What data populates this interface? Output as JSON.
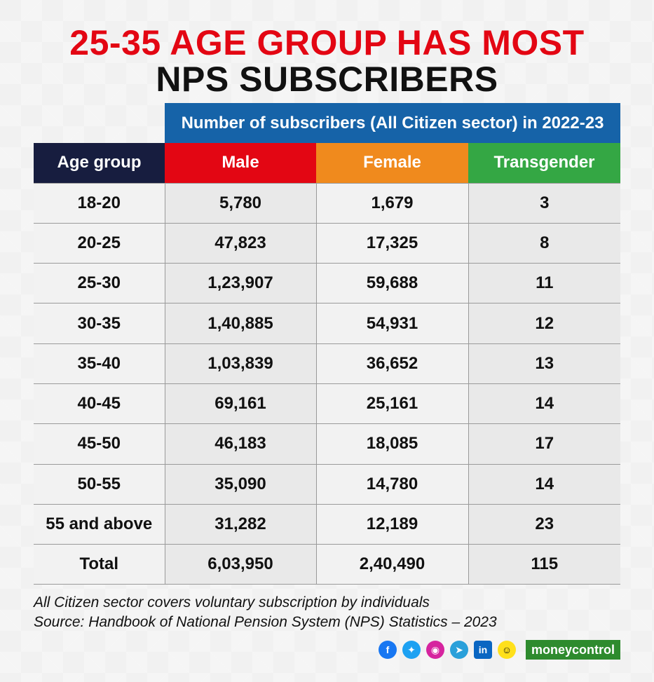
{
  "title": {
    "line1": "25-35 AGE GROUP HAS MOST",
    "line2": "NPS SUBSCRIBERS"
  },
  "chart_data": {
    "type": "table",
    "title": "25-35 AGE GROUP HAS MOST NPS SUBSCRIBERS",
    "super_header": "Number of subscribers (All Citizen sector) in 2022-23",
    "columns": [
      "Age group",
      "Male",
      "Female",
      "Transgender"
    ],
    "rows": [
      [
        "18-20",
        "5,780",
        "1,679",
        "3"
      ],
      [
        "20-25",
        "47,823",
        "17,325",
        "8"
      ],
      [
        "25-30",
        "1,23,907",
        "59,688",
        "11"
      ],
      [
        "30-35",
        "1,40,885",
        "54,931",
        "12"
      ],
      [
        "35-40",
        "1,03,839",
        "36,652",
        "13"
      ],
      [
        "40-45",
        "69,161",
        "25,161",
        "14"
      ],
      [
        "45-50",
        "46,183",
        "18,085",
        "17"
      ],
      [
        "50-55",
        "35,090",
        "14,780",
        "14"
      ],
      [
        "55 and above",
        "31,282",
        "12,189",
        "23"
      ],
      [
        "Total",
        "6,03,950",
        "2,40,490",
        "115"
      ]
    ],
    "column_colors": {
      "Age group": "#171d3f",
      "Male": "#e30613",
      "Female": "#f08a1d",
      "Transgender": "#34a744"
    },
    "super_header_color": "#1663a8"
  },
  "notes": {
    "line1": "All Citizen sector covers voluntary subscription by individuals",
    "line2": "Source: Handbook of National Pension System (NPS) Statistics – 2023"
  },
  "footer": {
    "icons": [
      "facebook-icon",
      "twitter-icon",
      "instagram-icon",
      "telegram-icon",
      "linkedin-icon",
      "snapchat-icon"
    ],
    "brand_part1": "money",
    "brand_part2": "control"
  }
}
